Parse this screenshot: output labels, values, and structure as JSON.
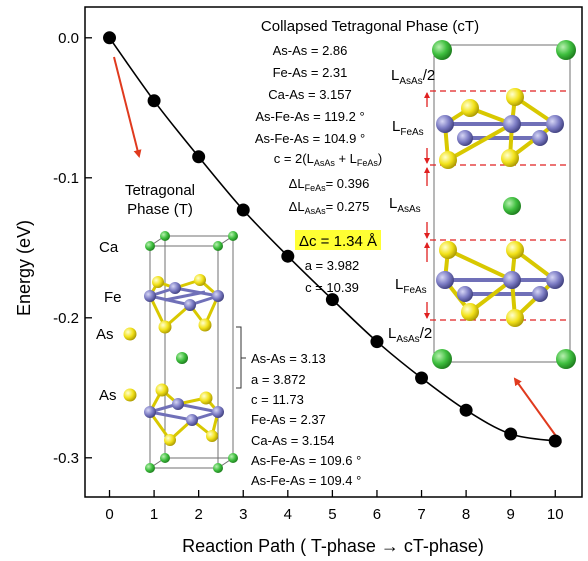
{
  "chart_data": {
    "type": "line",
    "title": "",
    "xlabel": "Reaction Path ( T-phase → cT-phase)",
    "ylabel": "Energy (eV)",
    "xlim": [
      -0.55,
      10.6
    ],
    "ylim": [
      -0.328,
      0.022
    ],
    "xticks": [
      0,
      1,
      2,
      3,
      4,
      5,
      6,
      7,
      8,
      9,
      10
    ],
    "yticks": [
      0.0,
      -0.1,
      -0.2,
      -0.3
    ],
    "ytick_labels": [
      "0.0",
      "-0.1",
      "-0.2",
      "-0.3"
    ],
    "grid": false,
    "series": [
      {
        "x": [
          0,
          1,
          2,
          3,
          4,
          5,
          6,
          7,
          8,
          9,
          10
        ],
        "y": [
          0.0,
          -0.045,
          -0.085,
          -0.123,
          -0.156,
          -0.187,
          -0.217,
          -0.243,
          -0.266,
          -0.283,
          -0.288
        ]
      }
    ]
  },
  "tetragonal": {
    "title_line1": "Tetragonal",
    "title_line2": "Phase (T)",
    "atom_ca": "Ca",
    "atom_fe": "Fe",
    "atom_as_upper": "As",
    "atom_as_lower": "As",
    "params": [
      "As-As = 3.13",
      "a = 3.872",
      "c = 11.73",
      "Fe-As = 2.37",
      "Ca-As = 3.154",
      "As-Fe-As = 109.6 °",
      "As-Fe-As = 109.4 °"
    ]
  },
  "collapsed": {
    "title": "Collapsed Tetragonal Phase (cT)",
    "params": [
      "As-As = 2.86",
      "Fe-As = 2.31",
      "Ca-As = 3.157",
      "As-Fe-As = 119.2 °",
      "As-Fe-As = 104.9 °",
      "c = 2(L",
      "AsAs",
      " + L",
      "FeAs",
      ")",
      "ΔL",
      "FeAs",
      "= 0.396",
      "ΔL",
      "AsAs",
      "= 0.275",
      "Δc = 1.34 Å",
      "a = 3.982",
      "c = 10.39"
    ],
    "labels": {
      "L": "L",
      "AsAs": "AsAs",
      "FeAs": "FeAs",
      "half": "/2"
    },
    "highlight_color": "#ffff33"
  },
  "colors": {
    "curve": "#000000",
    "arrow": "#e03a1e",
    "fe_atom": "#7f7fbf",
    "as_atom": "#f0e020",
    "ca_atom": "#44c044",
    "dashed": "#e02020"
  }
}
